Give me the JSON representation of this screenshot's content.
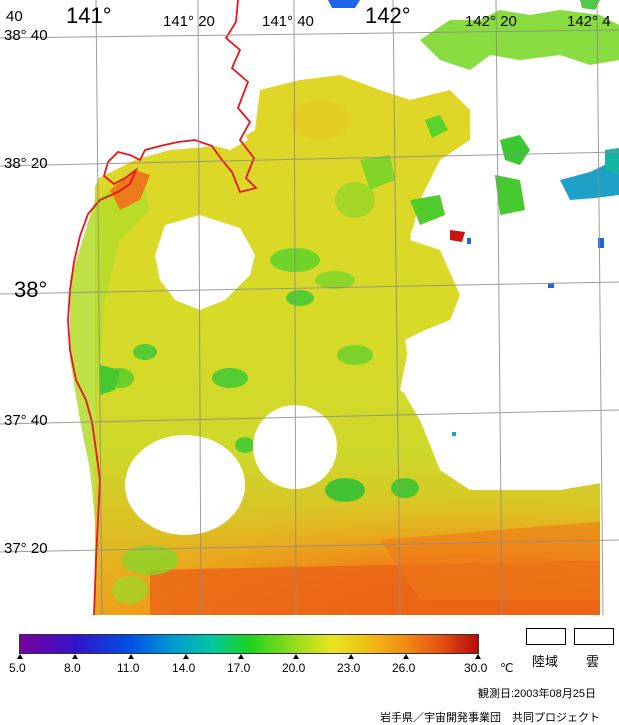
{
  "map": {
    "longitude_labels": [
      {
        "text": "141°",
        "size": "big"
      },
      {
        "text": "141° 20",
        "size": "small"
      },
      {
        "text": "141° 40",
        "size": "small"
      },
      {
        "text": "142°",
        "size": "big"
      },
      {
        "text": "142° 20",
        "size": "small"
      },
      {
        "text": "142° 4",
        "size": "small"
      }
    ],
    "latitude_labels": [
      {
        "text": "38° 40",
        "size": "small"
      },
      {
        "text": "38° 20",
        "size": "small"
      },
      {
        "text": "38°",
        "size": "big"
      },
      {
        "text": "37° 40",
        "size": "small"
      },
      {
        "text": "37° 20",
        "size": "small"
      }
    ],
    "corner_label": "40",
    "colors": {
      "coastline": "#e8141e",
      "graticule": "#8c8c8c",
      "cloud_land": "#ffffff"
    }
  },
  "legend": {
    "ticks": [
      "5.0",
      "8.0",
      "11.0",
      "14.0",
      "17.0",
      "20.0",
      "23.0",
      "26.0",
      "30.0"
    ],
    "unit": "℃",
    "land_label": "陸域",
    "cloud_label": "雲",
    "gradient_colors": [
      "#7a00a0",
      "#3214c8",
      "#0050e6",
      "#0096d2",
      "#00c8a0",
      "#1ed21e",
      "#96dc1e",
      "#e6e61e",
      "#f0be14",
      "#f08c14",
      "#e65014",
      "#c81414",
      "#b40a0a"
    ]
  },
  "footer": {
    "observation_date": "観測日:2003年08月25日",
    "credit": "岩手県／宇宙開発事業団　共同プロジェクト"
  }
}
